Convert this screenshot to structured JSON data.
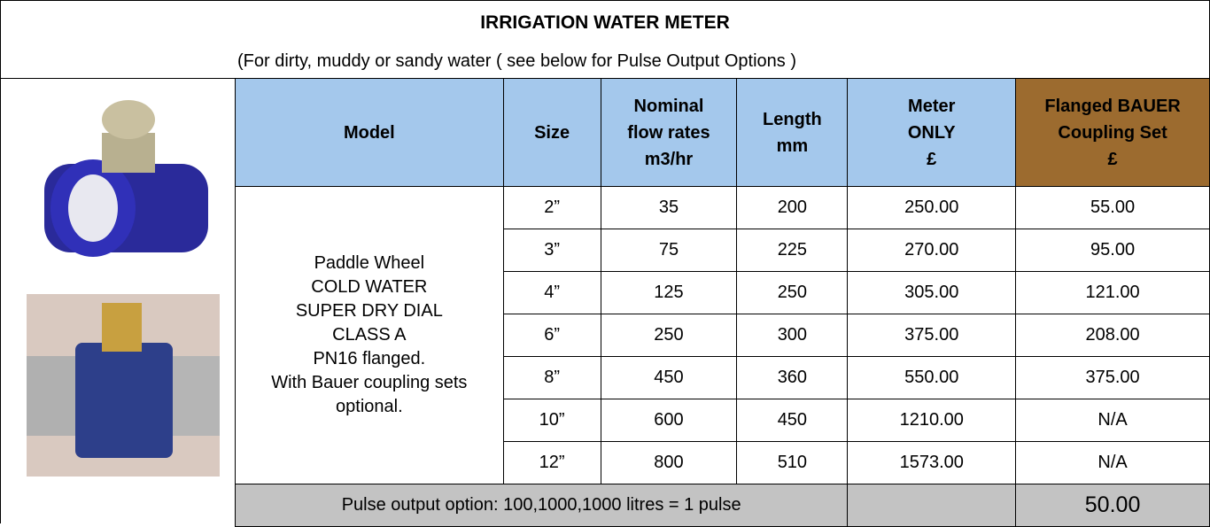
{
  "header": {
    "title": "IRRIGATION WATER METER",
    "subtitle": "(For dirty, muddy or sandy water ( see below for Pulse Output Options )"
  },
  "table": {
    "columns": [
      [
        "Model"
      ],
      [
        "Size"
      ],
      [
        "Nominal",
        "flow rates",
        "m3/hr"
      ],
      [
        "Length",
        "mm"
      ],
      [
        "Meter",
        "ONLY",
        "£"
      ],
      [
        "Flanged BAUER",
        "Coupling Set",
        "£"
      ]
    ],
    "model_description": [
      "Paddle Wheel",
      "COLD WATER",
      "SUPER DRY DIAL",
      "CLASS A",
      "PN16 flanged.",
      "With Bauer coupling sets",
      "optional."
    ],
    "rows": [
      [
        "2”",
        "35",
        "200",
        "250.00",
        "55.00"
      ],
      [
        "3”",
        "75",
        "225",
        "270.00",
        "95.00"
      ],
      [
        "4”",
        "125",
        "250",
        "305.00",
        "121.00"
      ],
      [
        "6”",
        "250",
        "300",
        "375.00",
        "208.00"
      ],
      [
        "8”",
        "450",
        "360",
        "550.00",
        "375.00"
      ],
      [
        "10”",
        "600",
        "450",
        "1210.00",
        "N/A"
      ],
      [
        "12”",
        "800",
        "510",
        "1573.00",
        "N/A"
      ]
    ]
  },
  "footer": {
    "pulse_label": "Pulse output option: 100,1000,1000 litres = 1 pulse",
    "pulse_price": "50.00"
  }
}
